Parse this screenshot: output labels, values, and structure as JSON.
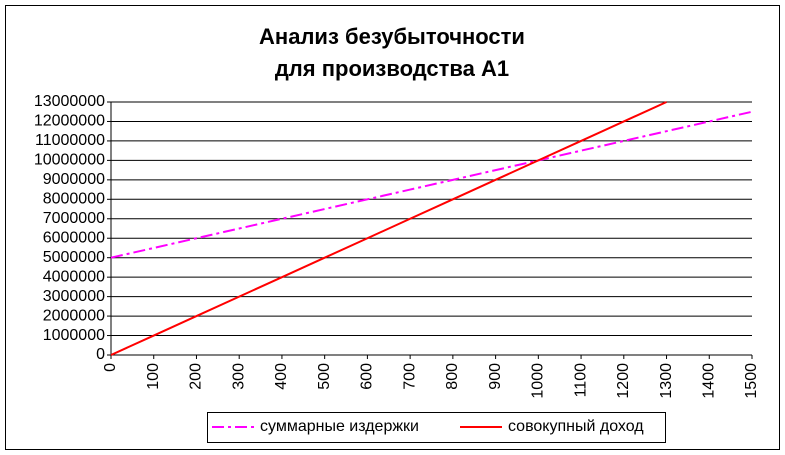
{
  "chart_data": {
    "type": "line",
    "title": [
      "Анализ безубыточности",
      "для производства А1"
    ],
    "x": [
      0,
      100,
      200,
      300,
      400,
      500,
      600,
      700,
      800,
      900,
      1000,
      1100,
      1200,
      1300,
      1400,
      1500
    ],
    "series": [
      {
        "name": "суммарные издержки",
        "color": "#ff00ff",
        "dash": "dashdot",
        "values": [
          5000000,
          5500000,
          6000000,
          6500000,
          7000000,
          7500000,
          8000000,
          8500000,
          9000000,
          9500000,
          10000000,
          10500000,
          11000000,
          11500000,
          12000000,
          12500000
        ]
      },
      {
        "name": "совокупный доход",
        "color": "#ff0000",
        "dash": "solid",
        "values": [
          0,
          1000000,
          2000000,
          3000000,
          4000000,
          5000000,
          6000000,
          7000000,
          8000000,
          9000000,
          10000000,
          11000000,
          12000000,
          13000000,
          null,
          null
        ]
      }
    ],
    "xlim": [
      0,
      1500
    ],
    "xticks": [
      0,
      100,
      200,
      300,
      400,
      500,
      600,
      700,
      800,
      900,
      1000,
      1100,
      1200,
      1300,
      1400,
      1500
    ],
    "ylim": [
      0,
      13000000
    ],
    "yticks": [
      0,
      1000000,
      2000000,
      3000000,
      4000000,
      5000000,
      6000000,
      7000000,
      8000000,
      9000000,
      10000000,
      11000000,
      12000000,
      13000000
    ],
    "grid": true,
    "legend": "bottom"
  }
}
